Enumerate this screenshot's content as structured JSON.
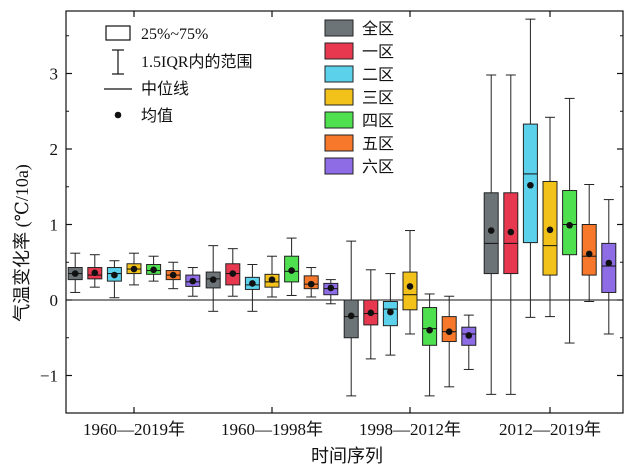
{
  "chart_data": {
    "type": "box",
    "xlabel": "时间序列",
    "ylabel": "气温变化率 (℃/10a)",
    "ylim": [
      -1.5,
      3.75
    ],
    "yticks": [
      -1,
      0,
      1,
      2,
      3
    ],
    "ytick_labels": [
      "−1",
      "0",
      "1",
      "2",
      "3"
    ],
    "zero_line": true,
    "groups": [
      "1960—2019年",
      "1960—1998年",
      "1998—2012年",
      "2012—2019年"
    ],
    "series": [
      {
        "name": "全区",
        "color": "#6d7477"
      },
      {
        "name": "一区",
        "color": "#e8384f"
      },
      {
        "name": "二区",
        "color": "#5bd1ec"
      },
      {
        "name": "三区",
        "color": "#f2c21b"
      },
      {
        "name": "四区",
        "color": "#4fe04f"
      },
      {
        "name": "五区",
        "color": "#f7782a"
      },
      {
        "name": "六区",
        "color": "#8d6ce6"
      }
    ],
    "boxes": [
      [
        {
          "lw": 0.1,
          "q1": 0.27,
          "med": 0.35,
          "q3": 0.43,
          "uw": 0.62,
          "mean": 0.35
        },
        {
          "lw": 0.17,
          "q1": 0.28,
          "med": 0.33,
          "q3": 0.43,
          "uw": 0.6,
          "mean": 0.36
        },
        {
          "lw": 0.03,
          "q1": 0.25,
          "med": 0.35,
          "q3": 0.43,
          "uw": 0.52,
          "mean": 0.33
        },
        {
          "lw": 0.2,
          "q1": 0.35,
          "med": 0.41,
          "q3": 0.48,
          "uw": 0.62,
          "mean": 0.41
        },
        {
          "lw": 0.25,
          "q1": 0.34,
          "med": 0.39,
          "q3": 0.47,
          "uw": 0.58,
          "mean": 0.4
        },
        {
          "lw": 0.15,
          "q1": 0.27,
          "med": 0.33,
          "q3": 0.39,
          "uw": 0.5,
          "mean": 0.33
        },
        {
          "lw": 0.05,
          "q1": 0.18,
          "med": 0.24,
          "q3": 0.33,
          "uw": 0.43,
          "mean": 0.25
        }
      ],
      [
        {
          "lw": -0.15,
          "q1": 0.16,
          "med": 0.28,
          "q3": 0.37,
          "uw": 0.72,
          "mean": 0.27
        },
        {
          "lw": 0.05,
          "q1": 0.2,
          "med": 0.35,
          "q3": 0.48,
          "uw": 0.68,
          "mean": 0.35
        },
        {
          "lw": -0.15,
          "q1": 0.14,
          "med": 0.2,
          "q3": 0.3,
          "uw": 0.47,
          "mean": 0.22
        },
        {
          "lw": 0.04,
          "q1": 0.17,
          "med": 0.24,
          "q3": 0.34,
          "uw": 0.58,
          "mean": 0.27
        },
        {
          "lw": 0.06,
          "q1": 0.24,
          "med": 0.38,
          "q3": 0.58,
          "uw": 0.82,
          "mean": 0.39
        },
        {
          "lw": 0.04,
          "q1": 0.15,
          "med": 0.21,
          "q3": 0.32,
          "uw": 0.43,
          "mean": 0.21
        },
        {
          "lw": -0.05,
          "q1": 0.07,
          "med": 0.15,
          "q3": 0.22,
          "uw": 0.27,
          "mean": 0.16
        }
      ],
      [
        {
          "lw": -1.27,
          "q1": -0.5,
          "med": -0.22,
          "q3": 0.0,
          "uw": 0.78,
          "mean": -0.21
        },
        {
          "lw": -0.78,
          "q1": -0.33,
          "med": -0.18,
          "q3": 0.0,
          "uw": 0.4,
          "mean": -0.17
        },
        {
          "lw": -0.73,
          "q1": -0.34,
          "med": -0.12,
          "q3": -0.02,
          "uw": 0.35,
          "mean": -0.16
        },
        {
          "lw": -0.45,
          "q1": -0.13,
          "med": 0.07,
          "q3": 0.37,
          "uw": 0.92,
          "mean": 0.18
        },
        {
          "lw": -1.27,
          "q1": -0.6,
          "med": -0.38,
          "q3": -0.1,
          "uw": 0.08,
          "mean": -0.4
        },
        {
          "lw": -1.15,
          "q1": -0.55,
          "med": -0.42,
          "q3": -0.22,
          "uw": 0.05,
          "mean": -0.42
        },
        {
          "lw": -0.92,
          "q1": -0.6,
          "med": -0.45,
          "q3": -0.36,
          "uw": -0.2,
          "mean": -0.47
        }
      ],
      [
        {
          "lw": -1.25,
          "q1": 0.35,
          "med": 0.75,
          "q3": 1.42,
          "uw": 2.98,
          "mean": 0.92
        },
        {
          "lw": -1.25,
          "q1": 0.35,
          "med": 0.75,
          "q3": 1.42,
          "uw": 2.98,
          "mean": 0.9
        },
        {
          "lw": -0.23,
          "q1": 0.76,
          "med": 1.67,
          "q3": 2.33,
          "uw": 3.72,
          "mean": 1.52
        },
        {
          "lw": -0.22,
          "q1": 0.33,
          "med": 0.72,
          "q3": 1.57,
          "uw": 2.42,
          "mean": 0.93
        },
        {
          "lw": -0.57,
          "q1": 0.6,
          "med": 1.0,
          "q3": 1.45,
          "uw": 2.67,
          "mean": 0.99
        },
        {
          "lw": -0.02,
          "q1": 0.33,
          "med": 0.58,
          "q3": 1.0,
          "uw": 1.53,
          "mean": 0.61
        },
        {
          "lw": -0.45,
          "q1": 0.1,
          "med": 0.45,
          "q3": 0.75,
          "uw": 1.33,
          "mean": 0.49
        }
      ]
    ],
    "legend_stats": [
      "25%~75%",
      "1.5IQR内的范围",
      "中位线",
      "均值"
    ]
  }
}
